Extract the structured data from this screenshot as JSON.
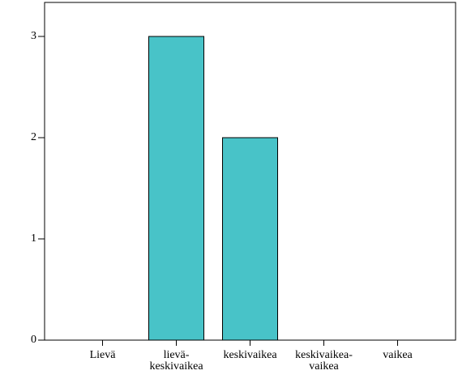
{
  "chart_data": {
    "type": "bar",
    "categories": [
      "Lievä",
      "lievä-\nkeskivaikea",
      "keskivaikea",
      "keskivaikea-\nvaikea",
      "vaikea"
    ],
    "values": [
      0,
      3,
      2,
      0,
      0
    ],
    "color": "#48c3c8",
    "ylim": [
      0,
      3.336
    ],
    "yticks": [
      0,
      1,
      2,
      3
    ]
  }
}
